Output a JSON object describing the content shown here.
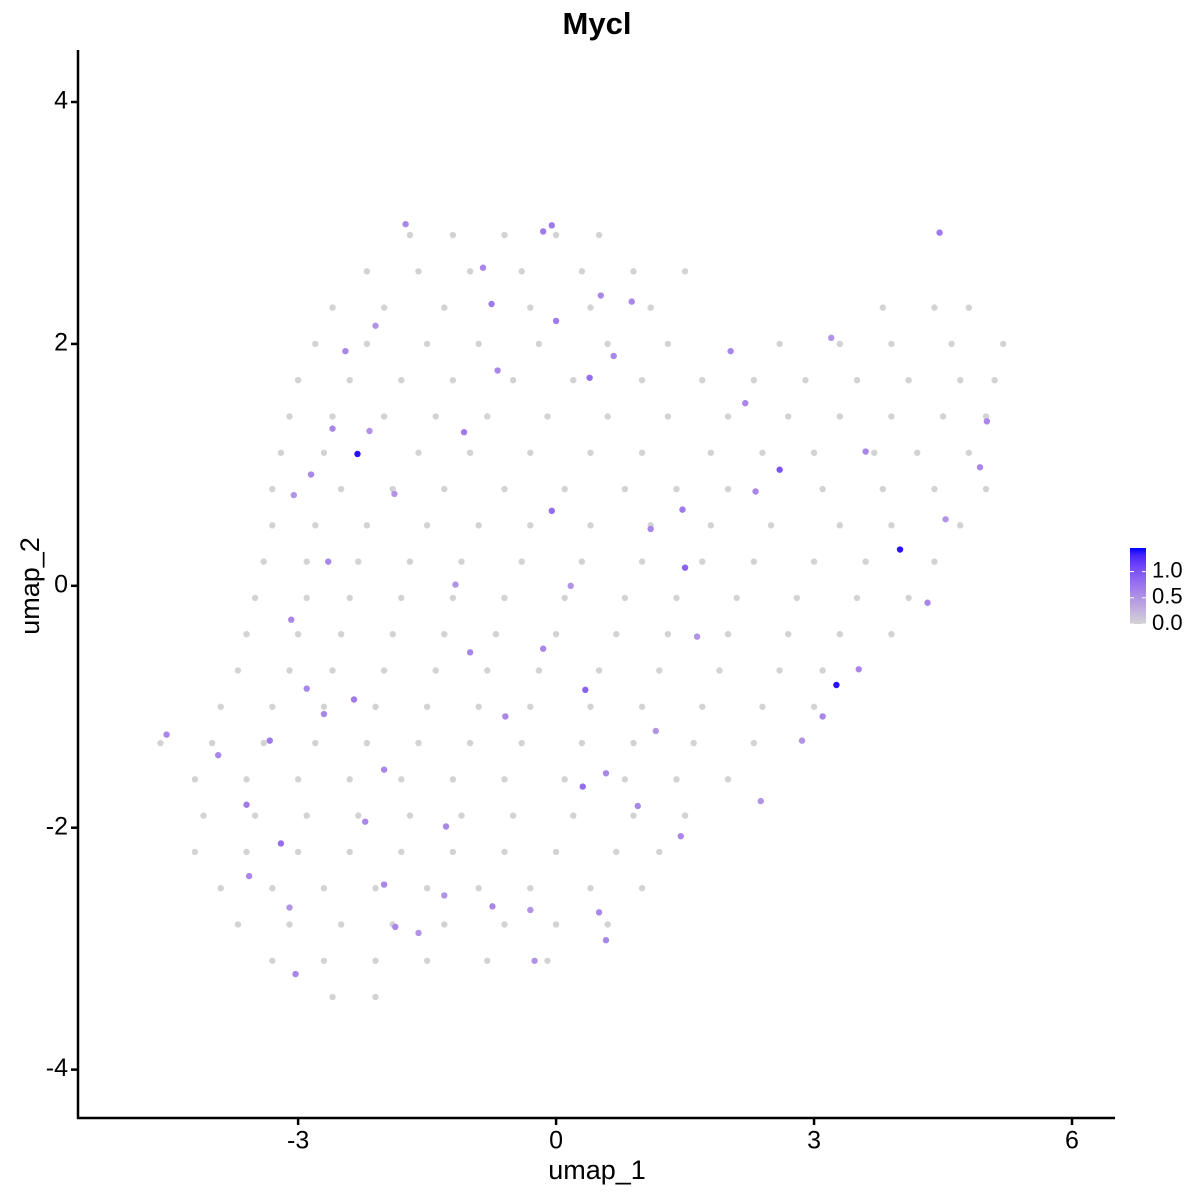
{
  "chart_data": {
    "type": "scatter",
    "title": "Mycl",
    "x_label": "umap_1",
    "y_label": "umap_2",
    "xlim": [
      -5.56,
      6.5
    ],
    "ylim": [
      -4.4,
      4.43
    ],
    "xticks": [
      -3,
      0,
      3,
      6
    ],
    "yticks": [
      -4,
      -2,
      0,
      2,
      4
    ],
    "color_low": "#d3d3d3",
    "color_high": "#0000ff",
    "clim": [
      0,
      1.45
    ],
    "cticks": [
      {
        "value": 0,
        "label": "0.0"
      },
      0.5,
      {
        "value": 1,
        "label": "1.0"
      }
    ],
    "x": [
      -1.7,
      -1.2,
      -0.6,
      0,
      0.5,
      -2.2,
      -1.6,
      -1.0,
      -0.4,
      0.3,
      0.9,
      1.5,
      -2.6,
      -2.0,
      -1.3,
      -0.3,
      0.4,
      1.1,
      3.8,
      4.4,
      4.8,
      -2.8,
      -2.2,
      -1.5,
      -0.9,
      -0.2,
      0.6,
      1.3,
      2.6,
      3.3,
      3.9,
      4.6,
      5.2,
      -3.0,
      -2.4,
      -1.8,
      -1.2,
      -0.5,
      0.2,
      1.0,
      1.7,
      2.3,
      2.9,
      3.5,
      4.1,
      4.7,
      5.1,
      -3.1,
      -2.6,
      -2.0,
      -1.4,
      -0.8,
      -0.1,
      0.6,
      1.3,
      2.0,
      2.7,
      3.3,
      3.9,
      4.5,
      5.0,
      -3.2,
      -2.7,
      -1.6,
      -1.0,
      -0.3,
      0.4,
      1.0,
      1.8,
      2.4,
      3.0,
      3.7,
      4.2,
      4.8,
      -3.3,
      -2.5,
      -1.9,
      -1.3,
      -0.6,
      0.1,
      0.8,
      1.4,
      2.0,
      3.1,
      3.8,
      4.4,
      5.0,
      -3.3,
      -2.8,
      -2.2,
      -1.5,
      -0.9,
      -0.3,
      0.4,
      1.1,
      1.8,
      2.5,
      3.3,
      3.9,
      4.7,
      -3.4,
      -2.9,
      -2.3,
      -1.7,
      -1.1,
      -0.4,
      0.3,
      1.0,
      1.7,
      2.3,
      3.0,
      3.6,
      4.4,
      -3.5,
      -2.9,
      -2.4,
      -1.8,
      -1.2,
      -0.6,
      0.1,
      0.8,
      1.4,
      2.1,
      2.8,
      3.5,
      4.1,
      -3.6,
      -3.0,
      -2.5,
      -1.9,
      -1.3,
      -0.7,
      0.0,
      0.7,
      1.3,
      2.0,
      2.7,
      3.3,
      3.9,
      -3.7,
      -3.1,
      -2.6,
      -2.0,
      -1.4,
      -0.8,
      -0.2,
      0.5,
      1.2,
      1.9,
      2.6,
      3.1,
      -3.9,
      -3.3,
      -2.7,
      -2.1,
      -1.5,
      -0.9,
      -0.3,
      0.4,
      1.0,
      1.7,
      2.4,
      3.0,
      -4.6,
      -4.0,
      -3.4,
      -2.8,
      -2.2,
      -1.6,
      -1.0,
      -0.4,
      0.3,
      0.9,
      1.6,
      2.3,
      -4.2,
      -3.6,
      -3.0,
      -2.4,
      -1.8,
      -1.2,
      -0.6,
      0.1,
      0.8,
      1.4,
      2.0,
      -4.1,
      -3.5,
      -2.9,
      -2.3,
      -1.7,
      -1.1,
      -0.5,
      0.2,
      0.9,
      1.5,
      -4.2,
      -3.6,
      -3.0,
      -2.4,
      -1.8,
      -1.2,
      -0.6,
      0.0,
      0.7,
      1.2,
      -3.9,
      -3.3,
      -2.7,
      -2.1,
      -1.5,
      -0.9,
      -0.3,
      0.4,
      1.0,
      -3.7,
      -3.1,
      -2.5,
      -1.9,
      -1.3,
      -0.6,
      0.0,
      0.6,
      -3.3,
      -2.7,
      -2.1,
      -1.5,
      -0.8,
      -0.1,
      -2.6,
      -2.1,
      -2.31,
      4.0,
      3.26,
      2.6,
      0.34,
      -0.05,
      -1.07,
      0.39,
      -0.75,
      -0.85,
      -1.75,
      -0.15,
      -0.05,
      0.0,
      0.88,
      0.52,
      -0.68,
      -2.1,
      -2.45,
      -2.6,
      -2.17,
      -2.85,
      -3.05,
      -2.65,
      -3.08,
      -2.35,
      -2.9,
      -2.7,
      -3.33,
      -3.93,
      -4.53,
      -3.6,
      -3.2,
      -3.57,
      -3.1,
      -3.03,
      -2.0,
      -1.87,
      -1.6,
      -1.3,
      -0.74,
      -0.3,
      -0.25,
      0.58,
      0.5,
      0.31,
      0.58,
      0.95,
      1.45,
      2.38,
      2.86,
      3.1,
      3.52,
      4.32,
      4.53,
      4.93,
      5.01,
      4.46,
      3.6,
      3.2,
      2.03,
      2.2,
      1.5,
      1.47,
      1.1,
      0.17,
      -0.15,
      -1.0,
      -1.17,
      -1.88,
      -2.0,
      -2.22,
      -1.28,
      -0.59,
      1.16,
      1.64,
      2.32,
      0.67
    ],
    "y": [
      2.9,
      2.9,
      2.9,
      2.9,
      2.9,
      2.6,
      2.6,
      2.6,
      2.6,
      2.6,
      2.6,
      2.6,
      2.3,
      2.3,
      2.3,
      2.3,
      2.3,
      2.3,
      2.3,
      2.3,
      2.3,
      2.0,
      2.0,
      2.0,
      2.0,
      2.0,
      2.0,
      2.0,
      2.0,
      2.0,
      2.0,
      2.0,
      2.0,
      1.7,
      1.7,
      1.7,
      1.7,
      1.7,
      1.7,
      1.7,
      1.7,
      1.7,
      1.7,
      1.7,
      1.7,
      1.7,
      1.7,
      1.4,
      1.4,
      1.4,
      1.4,
      1.4,
      1.4,
      1.4,
      1.4,
      1.4,
      1.4,
      1.4,
      1.4,
      1.4,
      1.4,
      1.1,
      1.1,
      1.1,
      1.1,
      1.1,
      1.1,
      1.1,
      1.1,
      1.1,
      1.1,
      1.1,
      1.1,
      1.1,
      0.8,
      0.8,
      0.8,
      0.8,
      0.8,
      0.8,
      0.8,
      0.8,
      0.8,
      0.8,
      0.8,
      0.8,
      0.8,
      0.5,
      0.5,
      0.5,
      0.5,
      0.5,
      0.5,
      0.5,
      0.5,
      0.5,
      0.5,
      0.5,
      0.5,
      0.5,
      0.2,
      0.2,
      0.2,
      0.2,
      0.2,
      0.2,
      0.2,
      0.2,
      0.2,
      0.2,
      0.2,
      0.2,
      0.2,
      -0.1,
      -0.1,
      -0.1,
      -0.1,
      -0.1,
      -0.1,
      -0.1,
      -0.1,
      -0.1,
      -0.1,
      -0.1,
      -0.1,
      -0.1,
      -0.4,
      -0.4,
      -0.4,
      -0.4,
      -0.4,
      -0.4,
      -0.4,
      -0.4,
      -0.4,
      -0.4,
      -0.4,
      -0.4,
      -0.4,
      -0.7,
      -0.7,
      -0.7,
      -0.7,
      -0.7,
      -0.7,
      -0.7,
      -0.7,
      -0.7,
      -0.7,
      -0.7,
      -0.7,
      -1.0,
      -1.0,
      -1.0,
      -1.0,
      -1.0,
      -1.0,
      -1.0,
      -1.0,
      -1.0,
      -1.0,
      -1.0,
      -1.0,
      -1.3,
      -1.3,
      -1.3,
      -1.3,
      -1.3,
      -1.3,
      -1.3,
      -1.3,
      -1.3,
      -1.3,
      -1.3,
      -1.3,
      -1.6,
      -1.6,
      -1.6,
      -1.6,
      -1.6,
      -1.6,
      -1.6,
      -1.6,
      -1.6,
      -1.6,
      -1.6,
      -1.9,
      -1.9,
      -1.9,
      -1.9,
      -1.9,
      -1.9,
      -1.9,
      -1.9,
      -1.9,
      -1.9,
      -2.2,
      -2.2,
      -2.2,
      -2.2,
      -2.2,
      -2.2,
      -2.2,
      -2.2,
      -2.2,
      -2.2,
      -2.5,
      -2.5,
      -2.5,
      -2.5,
      -2.5,
      -2.5,
      -2.5,
      -2.5,
      -2.5,
      -2.8,
      -2.8,
      -2.8,
      -2.8,
      -2.8,
      -2.8,
      -2.8,
      -2.8,
      -3.1,
      -3.1,
      -3.1,
      -3.1,
      -3.1,
      -3.1,
      -3.4,
      -3.4,
      1.09,
      0.3,
      -0.82,
      0.96,
      -0.86,
      0.62,
      1.27,
      1.72,
      2.33,
      2.63,
      2.99,
      2.93,
      2.98,
      2.19,
      2.35,
      2.4,
      1.78,
      2.15,
      1.94,
      1.3,
      1.28,
      0.92,
      0.75,
      0.2,
      -0.28,
      -0.94,
      -0.85,
      -1.06,
      -1.28,
      -1.4,
      -1.23,
      -1.81,
      -2.13,
      -2.4,
      -2.66,
      -3.21,
      -2.47,
      -2.82,
      -2.87,
      -2.56,
      -2.65,
      -2.68,
      -3.1,
      -2.93,
      -2.7,
      -1.66,
      -1.55,
      -1.82,
      -2.07,
      -1.78,
      -1.28,
      -1.08,
      -0.69,
      -0.14,
      0.55,
      0.98,
      1.36,
      2.92,
      1.11,
      2.05,
      1.94,
      1.51,
      0.15,
      0.63,
      0.47,
      0.0,
      -0.52,
      -0.55,
      0.01,
      0.76,
      -1.52,
      -1.95,
      -1.99,
      -1.08,
      -1.2,
      -0.42,
      0.78,
      1.9
    ],
    "values": [
      0,
      0,
      0,
      0,
      0,
      0,
      0,
      0,
      0,
      0,
      0,
      0,
      0,
      0,
      0,
      0,
      0,
      0,
      0,
      0,
      0,
      0,
      0,
      0,
      0,
      0,
      0,
      0,
      0,
      0,
      0,
      0,
      0,
      0,
      0,
      0,
      0,
      0,
      0,
      0,
      0,
      0,
      0,
      0,
      0,
      0,
      0,
      0,
      0,
      0,
      0,
      0,
      0,
      0,
      0,
      0,
      0,
      0,
      0,
      0,
      0,
      0,
      0,
      0,
      0,
      0,
      0,
      0,
      0,
      0,
      0,
      0,
      0,
      0,
      0,
      0,
      0,
      0,
      0,
      0,
      0,
      0,
      0,
      0,
      0,
      0,
      0,
      0,
      0,
      0,
      0,
      0,
      0,
      0,
      0,
      0,
      0,
      0,
      0,
      0,
      0,
      0,
      0,
      0,
      0,
      0,
      0,
      0,
      0,
      0,
      0,
      0,
      0,
      0,
      0,
      0,
      0,
      0,
      0,
      0,
      0,
      0,
      0,
      0,
      0,
      0,
      0,
      0,
      0,
      0,
      0,
      0,
      0,
      0,
      0,
      0,
      0,
      0,
      0,
      0,
      0,
      0,
      0,
      0,
      0,
      0,
      0,
      0,
      0,
      0,
      0,
      0,
      0,
      0,
      0,
      0,
      0,
      0,
      0,
      0,
      0,
      0,
      0,
      0,
      0,
      0,
      0,
      0,
      0,
      0,
      0,
      0,
      0,
      0,
      0,
      0,
      0,
      0,
      0,
      0,
      0,
      0,
      0,
      0,
      0,
      0,
      0,
      0,
      0,
      0,
      0,
      0,
      0,
      0,
      0,
      0,
      0,
      0,
      0,
      0,
      0,
      0,
      0,
      0,
      0,
      0,
      0,
      0,
      0,
      0,
      0,
      0,
      0,
      0,
      0,
      0,
      0,
      0,
      0,
      0,
      0,
      0,
      0,
      0,
      0,
      0,
      0,
      0,
      0,
      0,
      0,
      1.4,
      1.4,
      1.4,
      1.0,
      0.9,
      0.8,
      0.7,
      0.8,
      0.7,
      0.6,
      0.6,
      0.7,
      0.7,
      0.7,
      0.6,
      0.6,
      0.6,
      0.5,
      0.6,
      0.6,
      0.5,
      0.6,
      0.5,
      0.6,
      0.6,
      0.7,
      0.6,
      0.6,
      0.7,
      0.6,
      0.6,
      0.7,
      0.8,
      0.6,
      0.5,
      0.6,
      0.6,
      0.6,
      0.5,
      0.5,
      0.6,
      0.5,
      0.5,
      0.6,
      0.6,
      0.8,
      0.6,
      0.6,
      0.6,
      0.5,
      0.5,
      0.6,
      0.6,
      0.6,
      0.5,
      0.6,
      0.6,
      0.7,
      0.6,
      0.5,
      0.6,
      0.6,
      0.9,
      0.7,
      0.6,
      0.5,
      0.6,
      0.6,
      0.5,
      0.5,
      0.6,
      0.6,
      0.6,
      0.6,
      0.5,
      0.5,
      0.6,
      0.6
    ]
  }
}
